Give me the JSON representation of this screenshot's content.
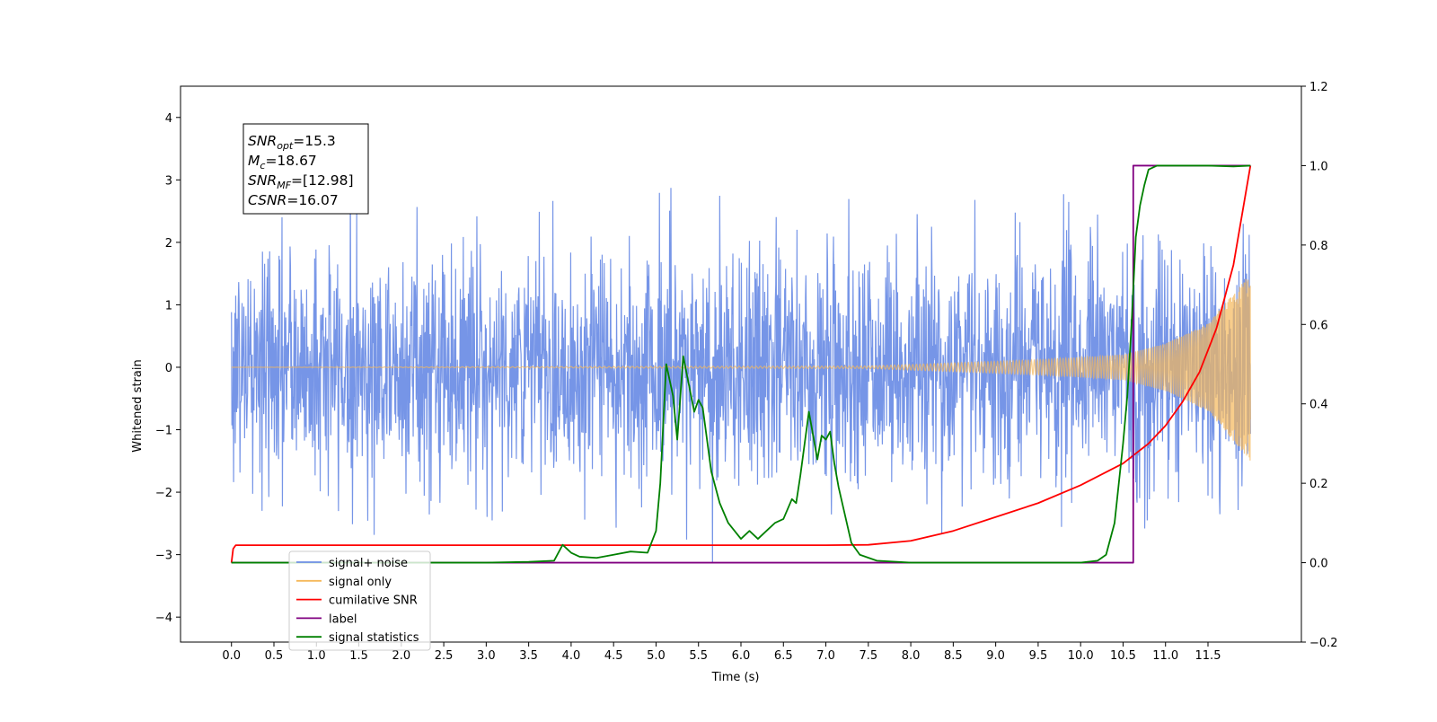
{
  "chart_data": {
    "type": "line",
    "xlabel": "Time (s)",
    "ylabel": "Whitened strain",
    "xlim": [
      -0.6,
      12.6
    ],
    "ylim": [
      -4.4,
      4.5
    ],
    "y2lim": [
      -0.2,
      1.2
    ],
    "x_ticks": [
      0.0,
      0.5,
      1.0,
      1.5,
      2.0,
      2.5,
      3.0,
      3.5,
      4.0,
      4.5,
      5.0,
      5.5,
      6.0,
      6.5,
      7.0,
      7.5,
      8.0,
      8.5,
      9.0,
      9.5,
      10.0,
      10.5,
      11.0,
      11.5
    ],
    "x_tick_labels": [
      "0.0",
      "0.5",
      "1.0",
      "1.5",
      "2.0",
      "2.5",
      "3.0",
      "3.5",
      "4.0",
      "4.5",
      "5.0",
      "5.5",
      "6.0",
      "6.5",
      "7.0",
      "7.5",
      "8.0",
      "8.5",
      "9.0",
      "9.5",
      "10.0",
      "10.5",
      "11.0",
      "11.5"
    ],
    "y_ticks": [
      4,
      3,
      2,
      1,
      0,
      -1,
      -2,
      -3,
      -4
    ],
    "y_tick_labels": [
      "4",
      "3",
      "2",
      "1",
      "0",
      "−1",
      "−2",
      "−3",
      "−4"
    ],
    "y2_ticks": [
      1.2,
      1.0,
      0.8,
      0.6,
      0.4,
      0.2,
      0.0,
      -0.2
    ],
    "y2_tick_labels": [
      "1.2",
      "1.0",
      "0.8",
      "0.6",
      "0.4",
      "0.2",
      "0.0",
      "−0.2"
    ],
    "grid": false,
    "legend_position": "lower-left",
    "annotation": [
      {
        "base": "SNR",
        "sub": "opt",
        "value": "=15.3"
      },
      {
        "base": "M",
        "sub": "c",
        "value": "=18.67"
      },
      {
        "base": "SNR",
        "sub": "MF",
        "value": "=[12.98]"
      },
      {
        "base": "CSNR",
        "sub": "",
        "value": "=16.07"
      }
    ],
    "noise_model": {
      "t_range": [
        0.0,
        12.0
      ],
      "std": 0.95,
      "range": [
        -3.8,
        4.1
      ],
      "samples": 2400
    },
    "series": [
      {
        "name": "signal+ noise",
        "axis": "left",
        "color": "#6f8fe6",
        "kind": "noise"
      },
      {
        "name": "signal only",
        "axis": "left",
        "color": "#f5b85a",
        "kind": "chirp",
        "t_range": [
          0.0,
          12.0
        ],
        "amplitude_t": [
          0,
          7.5,
          8.5,
          9.5,
          10.5,
          11.0,
          11.5,
          12.0
        ],
        "amplitude": [
          0.0,
          0.02,
          0.07,
          0.12,
          0.2,
          0.38,
          0.7,
          1.5
        ]
      },
      {
        "name": "cumilative SNR",
        "axis": "right",
        "color": "#ff0000",
        "x": [
          0.0,
          0.02,
          0.05,
          1.0,
          3.0,
          5.0,
          7.0,
          7.5,
          8.0,
          8.5,
          9.0,
          9.5,
          10.0,
          10.5,
          10.8,
          11.0,
          11.2,
          11.4,
          11.6,
          11.8,
          12.0
        ],
        "y": [
          0.0,
          0.035,
          0.044,
          0.044,
          0.044,
          0.044,
          0.044,
          0.045,
          0.055,
          0.08,
          0.115,
          0.15,
          0.195,
          0.25,
          0.3,
          0.345,
          0.405,
          0.48,
          0.59,
          0.75,
          1.0
        ]
      },
      {
        "name": "label",
        "axis": "right",
        "color": "#800080",
        "x": [
          0.0,
          10.62,
          10.62,
          12.0
        ],
        "y": [
          0.0,
          0.0,
          1.0,
          1.0
        ]
      },
      {
        "name": "signal statistics",
        "axis": "right",
        "color": "#008000",
        "x": [
          0.0,
          3.0,
          3.5,
          3.8,
          3.9,
          4.0,
          4.1,
          4.3,
          4.5,
          4.7,
          4.9,
          5.0,
          5.05,
          5.12,
          5.2,
          5.25,
          5.32,
          5.45,
          5.5,
          5.55,
          5.65,
          5.75,
          5.85,
          6.0,
          6.1,
          6.2,
          6.3,
          6.4,
          6.5,
          6.6,
          6.65,
          6.7,
          6.8,
          6.9,
          6.95,
          7.0,
          7.05,
          7.1,
          7.15,
          7.3,
          7.4,
          7.6,
          8.0,
          9.0,
          10.0,
          10.2,
          10.3,
          10.4,
          10.5,
          10.55,
          10.6,
          10.65,
          10.7,
          10.75,
          10.8,
          10.9,
          11.0,
          11.5,
          11.8,
          12.0
        ],
        "y": [
          0.0,
          0.0,
          0.002,
          0.005,
          0.045,
          0.025,
          0.015,
          0.012,
          0.02,
          0.028,
          0.025,
          0.08,
          0.2,
          0.5,
          0.42,
          0.31,
          0.52,
          0.38,
          0.41,
          0.39,
          0.23,
          0.15,
          0.1,
          0.06,
          0.08,
          0.06,
          0.08,
          0.1,
          0.11,
          0.16,
          0.15,
          0.22,
          0.38,
          0.26,
          0.32,
          0.31,
          0.33,
          0.25,
          0.19,
          0.05,
          0.02,
          0.005,
          0.0,
          0.0,
          0.0,
          0.005,
          0.02,
          0.1,
          0.3,
          0.42,
          0.6,
          0.82,
          0.9,
          0.95,
          0.99,
          1.0,
          1.0,
          1.0,
          0.998,
          1.0
        ]
      }
    ],
    "legend_entries": [
      {
        "label": "signal+ noise",
        "color": "#6f8fe6"
      },
      {
        "label": "signal only",
        "color": "#f5b85a"
      },
      {
        "label": "cumilative SNR",
        "color": "#ff0000"
      },
      {
        "label": "label",
        "color": "#800080"
      },
      {
        "label": "signal statistics",
        "color": "#008000"
      }
    ]
  }
}
